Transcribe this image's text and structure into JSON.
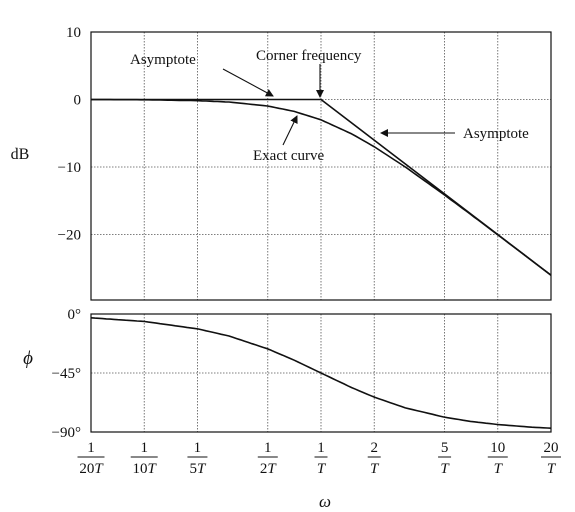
{
  "chart_data": {
    "type": "line",
    "xscale": "log",
    "x_tick_labels": [
      {
        "num": "1",
        "den": "20T",
        "x": 0.05
      },
      {
        "num": "1",
        "den": "10T",
        "x": 0.1
      },
      {
        "num": "1",
        "den": "5T",
        "x": 0.2
      },
      {
        "num": "1",
        "den": "2T",
        "x": 0.5
      },
      {
        "num": "1",
        "den": "T",
        "x": 1
      },
      {
        "num": "2",
        "den": "T",
        "x": 2
      },
      {
        "num": "5",
        "den": "T",
        "x": 5
      },
      {
        "num": "10",
        "den": "T",
        "x": 10
      },
      {
        "num": "20",
        "den": "T",
        "x": 20
      }
    ],
    "xlabel": "ω",
    "xlim": [
      0.05,
      20
    ],
    "grid": true,
    "magnitude": {
      "ylabel": "dB",
      "ylim": [
        -29.7,
        10
      ],
      "y_ticks": [
        10,
        0,
        -10,
        -20
      ],
      "y_tick_labels": [
        "10",
        "0",
        "−10",
        "−20"
      ],
      "series": [
        {
          "id": "asymptote",
          "x": [
            0.05,
            1,
            20
          ],
          "y": [
            0,
            0,
            -26.02
          ]
        },
        {
          "id": "exact",
          "x": [
            0.05,
            0.1,
            0.2,
            0.3,
            0.5,
            0.7,
            1,
            1.5,
            2,
            3,
            5,
            7,
            10,
            15,
            20
          ],
          "y": [
            -0.01,
            -0.04,
            -0.17,
            -0.37,
            -0.97,
            -1.74,
            -3.01,
            -5.12,
            -6.99,
            -10.0,
            -14.15,
            -16.99,
            -20.04,
            -23.54,
            -26.03
          ]
        }
      ],
      "annotations": [
        {
          "text": "Asymptote",
          "x": 0.5,
          "y": 0
        },
        {
          "text": "Corner frequency",
          "x": 1,
          "y": 0
        },
        {
          "text": "Asymptote",
          "x": 2.1,
          "y": -5.3
        },
        {
          "text": "Exact curve",
          "x": 0.7,
          "y": -1.7
        }
      ]
    },
    "phase": {
      "ylabel": "ϕ",
      "ylim": [
        -90,
        0
      ],
      "y_ticks": [
        0,
        -45,
        -90
      ],
      "y_tick_labels": [
        "0°",
        "−45°",
        "−90°"
      ],
      "series": [
        {
          "id": "phase",
          "x": [
            0.05,
            0.1,
            0.2,
            0.3,
            0.5,
            0.7,
            1,
            1.5,
            2,
            3,
            5,
            7,
            10,
            15,
            20
          ],
          "y": [
            -2.9,
            -5.7,
            -11.3,
            -16.7,
            -26.6,
            -35.0,
            -45.0,
            -56.3,
            -63.4,
            -71.6,
            -78.7,
            -81.9,
            -84.3,
            -86.2,
            -87.1
          ]
        }
      ]
    }
  }
}
